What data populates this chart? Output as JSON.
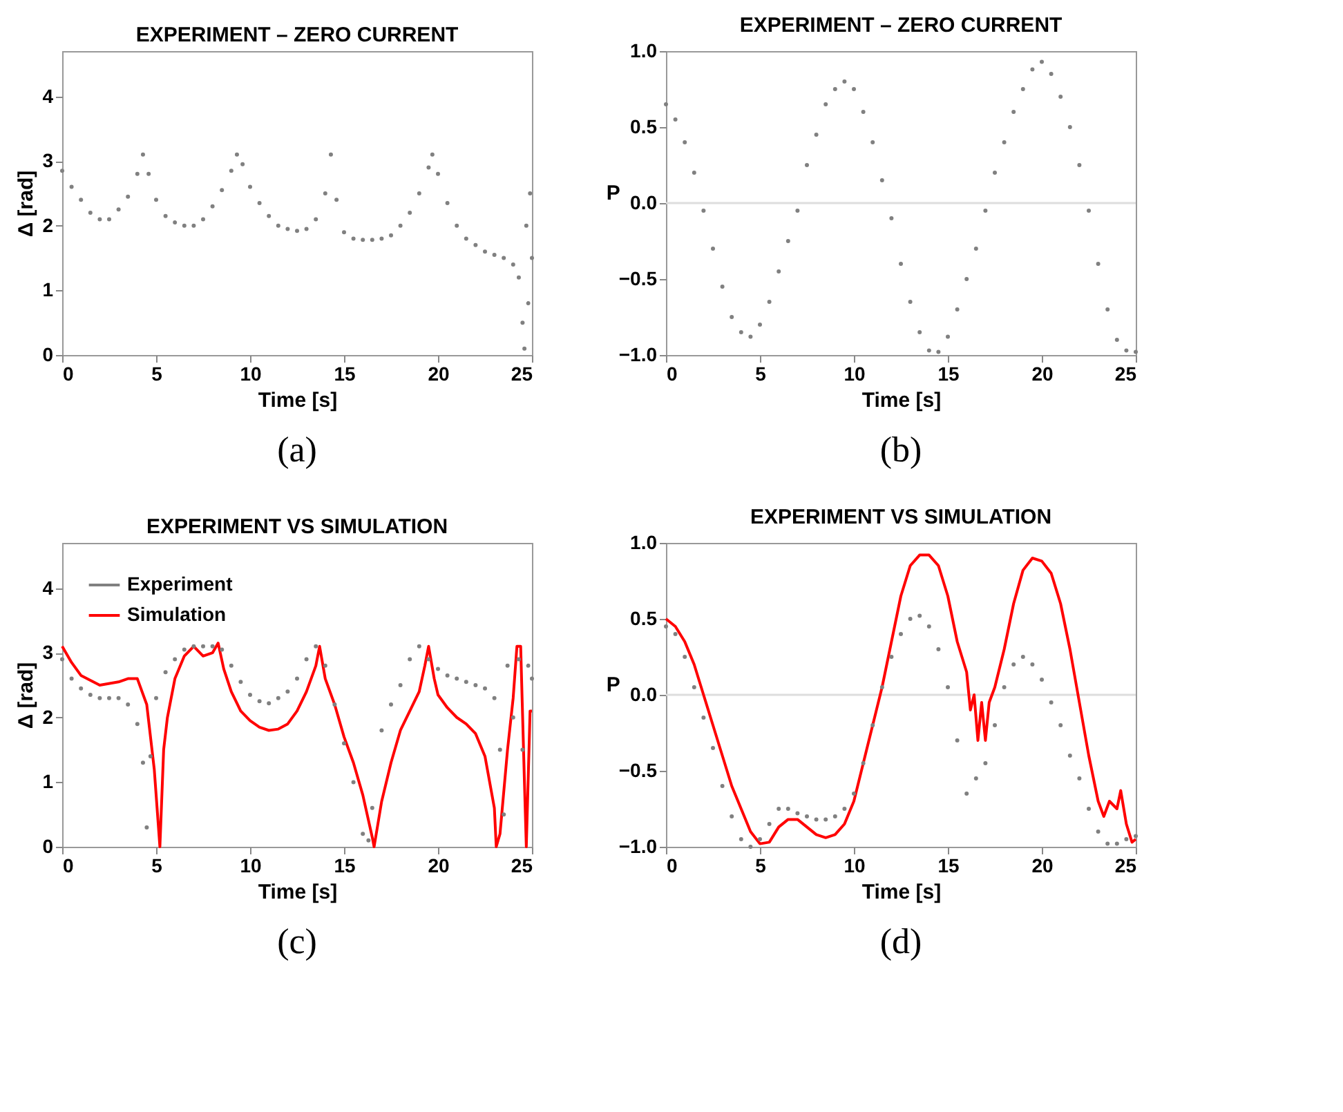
{
  "chart_data": [
    {
      "type": "scatter",
      "title": "EXPERIMENT – ZERO CURRENT",
      "xlabel": "Time [s]",
      "ylabel": "Δ [rad]",
      "xlim": [
        0,
        25
      ],
      "xticks": [
        0,
        5,
        10,
        15,
        20,
        25
      ],
      "ylim": [
        0,
        4.7
      ],
      "yticks": [
        0,
        1,
        2,
        3,
        4
      ],
      "grid": false,
      "legend": false,
      "marker": "circle",
      "annotations": [
        "(a)"
      ],
      "x": [
        0,
        0.5,
        1,
        1.5,
        2,
        2.5,
        3,
        3.5,
        4,
        4.3,
        4.6,
        5,
        5.5,
        6,
        6.5,
        7,
        7.5,
        8,
        8.5,
        9,
        9.3,
        9.6,
        10,
        10.5,
        11,
        11.5,
        12,
        12.5,
        13,
        13.5,
        14,
        14.3,
        14.6,
        15,
        15.5,
        16,
        16.5,
        17,
        17.5,
        18,
        18.5,
        19,
        19.5,
        19.7,
        20,
        20.5,
        21,
        21.5,
        22,
        22.5,
        23,
        23.5,
        24,
        24.3,
        24.5,
        24.6,
        24.7,
        24.8,
        24.9,
        25
      ],
      "series": [
        {
          "color": "#808080",
          "values": [
            2.85,
            2.6,
            2.4,
            2.2,
            2.1,
            2.1,
            2.25,
            2.45,
            2.8,
            3.1,
            2.8,
            2.4,
            2.15,
            2.05,
            2.0,
            2.0,
            2.1,
            2.3,
            2.55,
            2.85,
            3.1,
            2.95,
            2.6,
            2.35,
            2.15,
            2.0,
            1.95,
            1.92,
            1.95,
            2.1,
            2.5,
            3.1,
            2.4,
            1.9,
            1.8,
            1.78,
            1.78,
            1.8,
            1.85,
            2.0,
            2.2,
            2.5,
            2.9,
            3.1,
            2.8,
            2.35,
            2.0,
            1.8,
            1.7,
            1.6,
            1.55,
            1.5,
            1.4,
            1.2,
            0.5,
            0.1,
            2.0,
            0.8,
            2.5,
            1.5
          ]
        }
      ]
    },
    {
      "type": "scatter",
      "title": "EXPERIMENT – ZERO CURRENT",
      "xlabel": "Time [s]",
      "ylabel": "P",
      "xlim": [
        0,
        25
      ],
      "xticks": [
        0,
        5,
        10,
        15,
        20,
        25
      ],
      "ylim": [
        -1,
        1
      ],
      "yticks": [
        {
          "value": -1,
          "label": "−1.0"
        },
        {
          "value": -0.5,
          "label": "−0.5"
        },
        {
          "value": 0,
          "label": "0.0"
        },
        0.5,
        {
          "value": 1,
          "label": "1.0"
        }
      ],
      "grid": false,
      "legend": false,
      "marker": "circle",
      "annotations": [
        "(b)"
      ],
      "ref_lines": [
        {
          "axis": "y",
          "value": 0,
          "color": "#dddddd"
        }
      ],
      "x": [
        0,
        0.5,
        1,
        1.5,
        2,
        2.5,
        3,
        3.5,
        4,
        4.5,
        5,
        5.5,
        6,
        6.5,
        7,
        7.5,
        8,
        8.5,
        9,
        9.5,
        10,
        10.5,
        11,
        11.5,
        12,
        12.5,
        13,
        13.5,
        14,
        14.5,
        15,
        15.5,
        16,
        16.5,
        17,
        17.5,
        18,
        18.5,
        19,
        19.5,
        20,
        20.5,
        21,
        21.5,
        22,
        22.5,
        23,
        23.5,
        24,
        24.5,
        25
      ],
      "series": [
        {
          "color": "#808080",
          "values": [
            0.65,
            0.55,
            0.4,
            0.2,
            -0.05,
            -0.3,
            -0.55,
            -0.75,
            -0.85,
            -0.88,
            -0.8,
            -0.65,
            -0.45,
            -0.25,
            -0.05,
            0.25,
            0.45,
            0.65,
            0.75,
            0.8,
            0.75,
            0.6,
            0.4,
            0.15,
            -0.1,
            -0.4,
            -0.65,
            -0.85,
            -0.97,
            -0.98,
            -0.88,
            -0.7,
            -0.5,
            -0.3,
            -0.05,
            0.2,
            0.4,
            0.6,
            0.75,
            0.88,
            0.93,
            0.85,
            0.7,
            0.5,
            0.25,
            -0.05,
            -0.4,
            -0.7,
            -0.9,
            -0.97,
            -0.98
          ]
        }
      ]
    },
    {
      "type": "scatter",
      "title": "EXPERIMENT VS SIMULATION",
      "xlabel": "Time [s]",
      "ylabel": "Δ [rad]",
      "xlim": [
        0,
        25
      ],
      "xticks": [
        0,
        5,
        10,
        15,
        20,
        25
      ],
      "ylim": [
        0,
        4.7
      ],
      "yticks": [
        0,
        1,
        2,
        3,
        4
      ],
      "grid": false,
      "legend": "top left",
      "marker": "circle",
      "annotations": [
        "(c)"
      ],
      "series": [
        {
          "name": "Experiment",
          "type": "scatter",
          "color": "#808080",
          "x": [
            0,
            0.5,
            1,
            1.5,
            2,
            2.5,
            3,
            3.5,
            4,
            4.3,
            4.5,
            4.7,
            5,
            5.5,
            6,
            6.5,
            7,
            7.5,
            8,
            8.5,
            9,
            9.5,
            10,
            10.5,
            11,
            11.5,
            12,
            12.5,
            13,
            13.5,
            14,
            14.5,
            15,
            15.5,
            16,
            16.3,
            16.5,
            17,
            17.5,
            18,
            18.5,
            19,
            19.5,
            20,
            20.5,
            21,
            21.5,
            22,
            22.5,
            23,
            23.3,
            23.5,
            23.7,
            24,
            24.3,
            24.5,
            24.8,
            25
          ],
          "values": [
            2.9,
            2.6,
            2.45,
            2.35,
            2.3,
            2.3,
            2.3,
            2.2,
            1.9,
            1.3,
            0.3,
            1.4,
            2.3,
            2.7,
            2.9,
            3.05,
            3.1,
            3.1,
            3.1,
            3.05,
            2.8,
            2.55,
            2.35,
            2.25,
            2.22,
            2.3,
            2.4,
            2.6,
            2.9,
            3.1,
            2.8,
            2.2,
            1.6,
            1.0,
            0.2,
            0.1,
            0.6,
            1.8,
            2.2,
            2.5,
            2.9,
            3.1,
            2.9,
            2.75,
            2.65,
            2.6,
            2.55,
            2.5,
            2.45,
            2.3,
            1.5,
            0.5,
            2.8,
            2.0,
            2.9,
            1.5,
            2.8,
            2.6
          ]
        },
        {
          "name": "Simulation",
          "type": "line",
          "marker": "none",
          "line_style": "solid",
          "color": "#ff0000",
          "x": [
            0,
            0.5,
            1,
            2,
            3,
            3.5,
            4,
            4.5,
            4.9,
            5.2,
            5.4,
            5.6,
            6,
            6.5,
            7,
            7.5,
            8,
            8.3,
            8.6,
            9,
            9.5,
            10,
            10.5,
            11,
            11.5,
            12,
            12.5,
            13,
            13.5,
            13.7,
            14,
            14.5,
            15,
            15.5,
            16,
            16.5,
            16.6,
            17,
            17.5,
            18,
            18.5,
            19,
            19.3,
            19.5,
            19.8,
            20,
            20.5,
            21,
            21.5,
            22,
            22.5,
            23,
            23.1,
            23.3,
            23.7,
            24,
            24.2,
            24.4,
            24.6,
            24.7,
            24.9,
            25
          ],
          "values": [
            3.1,
            2.85,
            2.65,
            2.5,
            2.55,
            2.6,
            2.6,
            2.2,
            1.2,
            0,
            1.5,
            2.0,
            2.6,
            2.95,
            3.1,
            2.95,
            3.0,
            3.15,
            2.75,
            2.4,
            2.1,
            1.95,
            1.85,
            1.8,
            1.82,
            1.9,
            2.1,
            2.4,
            2.8,
            3.1,
            2.6,
            2.2,
            1.7,
            1.3,
            0.8,
            0.15,
            0,
            0.7,
            1.3,
            1.8,
            2.1,
            2.4,
            2.8,
            3.1,
            2.6,
            2.35,
            2.15,
            2.0,
            1.9,
            1.75,
            1.4,
            0.6,
            0,
            0.2,
            1.5,
            2.3,
            3.1,
            3.1,
            1.0,
            0,
            2.1,
            2.1
          ]
        }
      ]
    },
    {
      "type": "scatter",
      "title": "EXPERIMENT VS SIMULATION",
      "xlabel": "Time [s]",
      "ylabel": "P",
      "xlim": [
        0,
        25
      ],
      "xticks": [
        0,
        5,
        10,
        15,
        20,
        25
      ],
      "ylim": [
        -1,
        1
      ],
      "yticks": [
        {
          "value": -1,
          "label": "−1.0"
        },
        {
          "value": -0.5,
          "label": "−0.5"
        },
        {
          "value": 0,
          "label": "0.0"
        },
        0.5,
        {
          "value": 1,
          "label": "1.0"
        }
      ],
      "grid": false,
      "legend": "top left",
      "marker": "circle",
      "annotations": [
        "(d)"
      ],
      "ref_lines": [
        {
          "axis": "y",
          "value": 0,
          "color": "#dddddd"
        }
      ],
      "series": [
        {
          "name": "Experiment",
          "type": "scatter",
          "color": "#808080",
          "x": [
            0,
            0.5,
            1,
            1.5,
            2,
            2.5,
            3,
            3.5,
            4,
            4.5,
            5,
            5.5,
            6,
            6.5,
            7,
            7.5,
            8,
            8.5,
            9,
            9.5,
            10,
            10.5,
            11,
            11.5,
            12,
            12.5,
            13,
            13.5,
            14,
            14.5,
            15,
            15.5,
            16,
            16.5,
            17,
            17.5,
            18,
            18.5,
            19,
            19.5,
            20,
            20.5,
            21,
            21.5,
            22,
            22.5,
            23,
            23.5,
            24,
            24.5,
            25
          ],
          "values": [
            0.45,
            0.4,
            0.25,
            0.05,
            -0.15,
            -0.35,
            -0.6,
            -0.8,
            -0.95,
            -1.0,
            -0.95,
            -0.85,
            -0.75,
            -0.75,
            -0.78,
            -0.8,
            -0.82,
            -0.82,
            -0.8,
            -0.75,
            -0.65,
            -0.45,
            -0.2,
            0.05,
            0.25,
            0.4,
            0.5,
            0.52,
            0.45,
            0.3,
            0.05,
            -0.3,
            -0.65,
            -0.55,
            -0.45,
            -0.2,
            0.05,
            0.2,
            0.25,
            0.2,
            0.1,
            -0.05,
            -0.2,
            -0.4,
            -0.55,
            -0.75,
            -0.9,
            -0.98,
            -0.98,
            -0.95,
            -0.93
          ]
        },
        {
          "name": "Simulation",
          "type": "line",
          "marker": "none",
          "line_style": "solid",
          "color": "#ff0000",
          "x": [
            0,
            0.5,
            1,
            1.5,
            2,
            2.5,
            3,
            3.5,
            4,
            4.5,
            5,
            5.5,
            6,
            6.5,
            7,
            7.5,
            8,
            8.5,
            9,
            9.5,
            10,
            10.5,
            11,
            11.5,
            12,
            12.5,
            13,
            13.5,
            14,
            14.5,
            15,
            15.5,
            16,
            16.2,
            16.4,
            16.6,
            16.8,
            17,
            17.2,
            17.5,
            18,
            18.5,
            19,
            19.5,
            20,
            20.5,
            21,
            21.5,
            22,
            22.5,
            23,
            23.3,
            23.6,
            24,
            24.2,
            24.5,
            24.8,
            25
          ],
          "values": [
            0.5,
            0.45,
            0.35,
            0.2,
            0.0,
            -0.2,
            -0.4,
            -0.6,
            -0.75,
            -0.9,
            -0.98,
            -0.97,
            -0.87,
            -0.82,
            -0.82,
            -0.87,
            -0.92,
            -0.94,
            -0.92,
            -0.85,
            -0.7,
            -0.45,
            -0.2,
            0.05,
            0.35,
            0.65,
            0.85,
            0.92,
            0.92,
            0.85,
            0.65,
            0.35,
            0.15,
            -0.1,
            0.0,
            -0.3,
            -0.05,
            -0.3,
            -0.05,
            0.05,
            0.3,
            0.6,
            0.82,
            0.9,
            0.88,
            0.8,
            0.6,
            0.3,
            -0.05,
            -0.4,
            -0.7,
            -0.8,
            -0.7,
            -0.75,
            -0.63,
            -0.85,
            -0.97,
            -0.95
          ]
        }
      ]
    }
  ]
}
